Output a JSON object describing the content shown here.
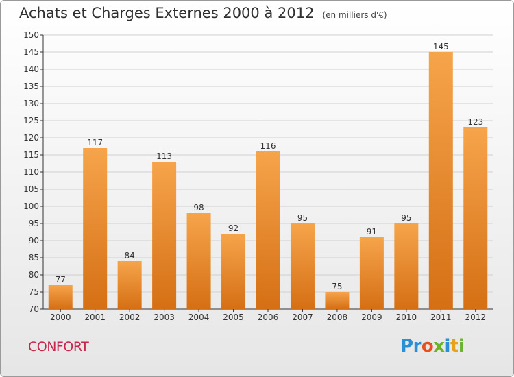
{
  "header": {
    "title": "Achats et Charges Externes 2000 à 2012",
    "unit": "(en milliers d'€)"
  },
  "footer": {
    "label": "CONFORT"
  },
  "logo": {
    "text": "Proxiti",
    "colors": [
      "#2b8fd6",
      "#2b8fd6",
      "#e8501a",
      "#6ab42d",
      "#2b8fd6",
      "#e8a21a",
      "#6ab42d"
    ]
  },
  "colors": {
    "bar_top": "#f6a44b",
    "bar_bottom": "#d56f14",
    "grid": "#d0d0d0"
  },
  "chart_data": {
    "type": "bar",
    "title": "Achats et Charges Externes 2000 à 2012",
    "xlabel": "",
    "ylabel": "en milliers d'€",
    "categories": [
      "2000",
      "2001",
      "2002",
      "2003",
      "2004",
      "2005",
      "2006",
      "2007",
      "2008",
      "2009",
      "2010",
      "2011",
      "2012"
    ],
    "values": [
      77,
      117,
      84,
      113,
      98,
      92,
      116,
      95,
      75,
      91,
      95,
      145,
      123
    ],
    "ylim": [
      70,
      150
    ],
    "yticks": [
      70,
      75,
      80,
      85,
      90,
      95,
      100,
      105,
      110,
      115,
      120,
      125,
      130,
      135,
      140,
      145,
      150
    ],
    "grid": true
  }
}
